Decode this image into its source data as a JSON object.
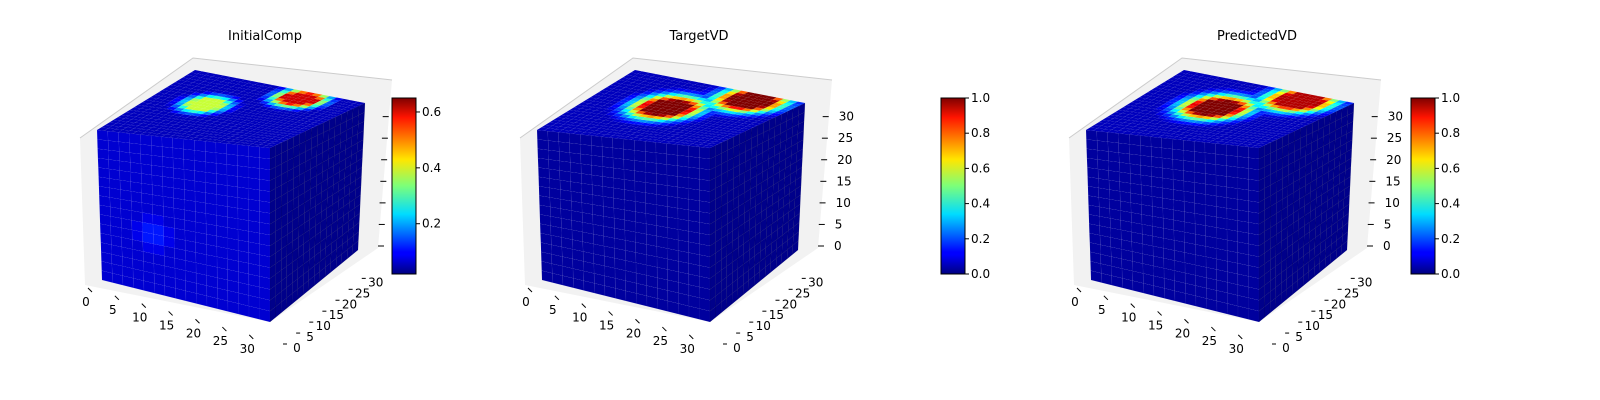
{
  "chart_data": [
    {
      "type": "heatmap",
      "title": "InitialComp",
      "x_ticks": [
        "0",
        "5",
        "10",
        "15",
        "20",
        "25",
        "30"
      ],
      "y_ticks": [
        "0",
        "5",
        "10",
        "15",
        "20",
        "25",
        "30"
      ],
      "z_ticks": [
        "",
        "",
        "",
        "",
        "",
        "",
        ""
      ],
      "xlim": [
        0,
        32
      ],
      "ylim": [
        0,
        32
      ],
      "zlim": [
        0,
        32
      ],
      "colorbar": {
        "ticks": [
          "0.2",
          "0.4",
          "0.6"
        ],
        "tick_values": [
          0.2,
          0.4,
          0.6
        ],
        "min": 0.02,
        "max": 0.65,
        "colormap": "jet"
      },
      "top_face_hotspots": [
        {
          "x": 10,
          "y": 18,
          "value": 0.38
        },
        {
          "x": 22,
          "y": 28,
          "value": 0.6
        }
      ],
      "front_face_hotspots": [
        {
          "x": 10,
          "z": 12,
          "value": 0.12
        }
      ]
    },
    {
      "type": "heatmap",
      "title": "TargetVD",
      "x_ticks": [
        "0",
        "5",
        "10",
        "15",
        "20",
        "25",
        "30"
      ],
      "y_ticks": [
        "0",
        "5",
        "10",
        "15",
        "20",
        "25",
        "30"
      ],
      "z_ticks": [
        "0",
        "5",
        "10",
        "15",
        "20",
        "25",
        "30"
      ],
      "xlim": [
        0,
        32
      ],
      "ylim": [
        0,
        32
      ],
      "zlim": [
        0,
        32
      ],
      "colorbar": {
        "ticks": [
          "0.0",
          "0.2",
          "0.4",
          "0.6",
          "0.8",
          "1.0"
        ],
        "tick_values": [
          0.0,
          0.2,
          0.4,
          0.6,
          0.8,
          1.0
        ],
        "min": 0.0,
        "max": 1.0,
        "colormap": "jet"
      },
      "top_face_hotspots": [
        {
          "x": 14,
          "y": 18,
          "value": 1.0
        },
        {
          "x": 24,
          "y": 28,
          "value": 1.0
        }
      ]
    },
    {
      "type": "heatmap",
      "title": "PredictedVD",
      "x_ticks": [
        "0",
        "5",
        "10",
        "15",
        "20",
        "25",
        "30"
      ],
      "y_ticks": [
        "0",
        "5",
        "10",
        "15",
        "20",
        "25",
        "30"
      ],
      "z_ticks": [
        "0",
        "5",
        "10",
        "15",
        "20",
        "25",
        "30"
      ],
      "xlim": [
        0,
        32
      ],
      "ylim": [
        0,
        32
      ],
      "zlim": [
        0,
        32
      ],
      "colorbar": {
        "ticks": [
          "0.0",
          "0.2",
          "0.4",
          "0.6",
          "0.8",
          "1.0"
        ],
        "tick_values": [
          0.0,
          0.2,
          0.4,
          0.6,
          0.8,
          1.0
        ],
        "min": 0.0,
        "max": 1.0,
        "colormap": "jet"
      },
      "top_face_hotspots": [
        {
          "x": 14,
          "y": 18,
          "value": 1.0
        },
        {
          "x": 24,
          "y": 28,
          "value": 0.95
        }
      ]
    }
  ]
}
